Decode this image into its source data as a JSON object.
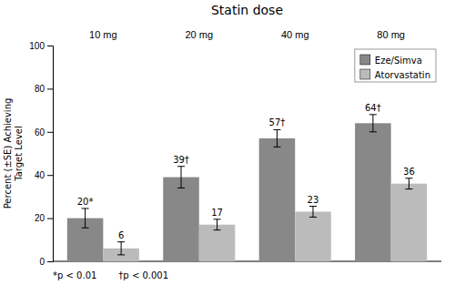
{
  "chart_data": {
    "type": "bar",
    "title": "Statin dose",
    "ylabel": "Percent (±SE) Achieving\nTarget Level",
    "categories": [
      "10 mg",
      "20 mg",
      "40 mg",
      "80 mg"
    ],
    "series": [
      {
        "name": "Eze/Simva",
        "color": "#888888",
        "values": [
          20,
          39,
          57,
          64
        ],
        "errors": [
          4.5,
          5,
          4,
          4
        ],
        "value_labels": [
          "20*",
          "39†",
          "57†",
          "64†"
        ]
      },
      {
        "name": "Atorvastatin",
        "color": "#bbbbbb",
        "values": [
          6,
          17,
          23,
          36
        ],
        "errors": [
          3,
          2.5,
          2.5,
          2.5
        ]
      }
    ],
    "ylim": [
      0,
      100
    ],
    "yticks": [
      0,
      20,
      40,
      60,
      80,
      100
    ],
    "legend": "upper right",
    "data_labels": true,
    "annotations": [
      "*p < 0.01",
      "†p < 0.001"
    ]
  }
}
